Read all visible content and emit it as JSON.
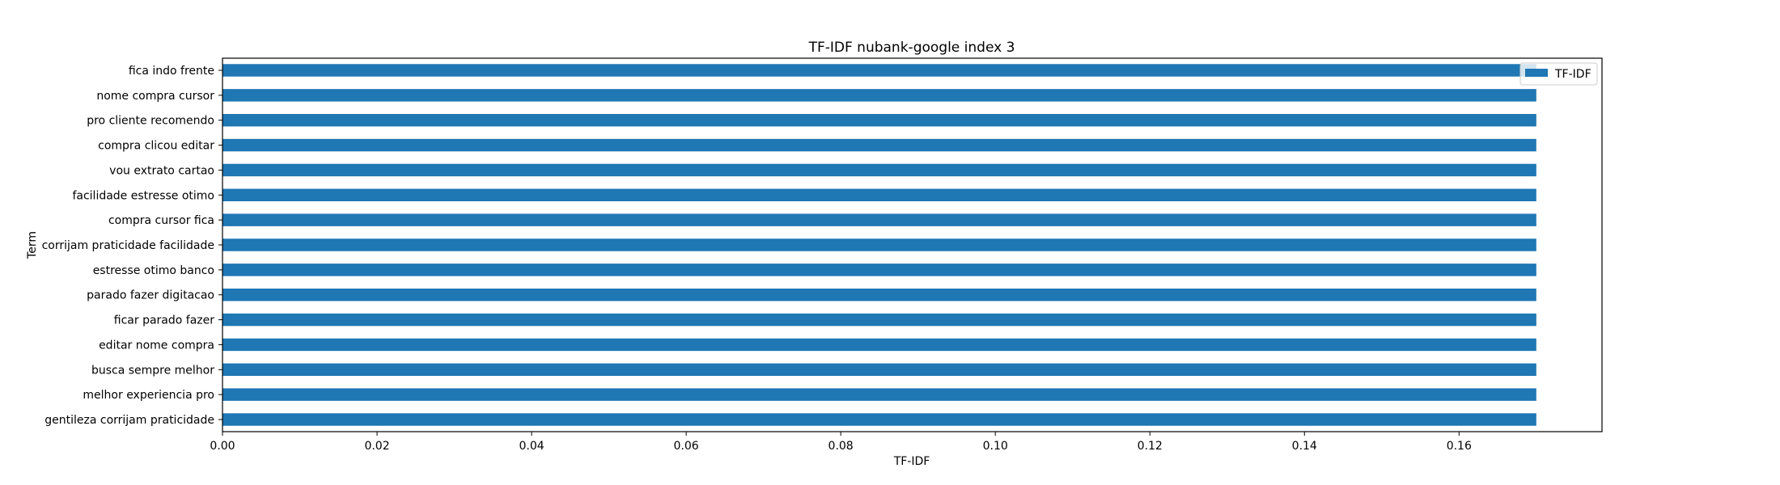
{
  "chart_data": {
    "type": "bar",
    "orientation": "horizontal",
    "title": "TF-IDF nubank-google index 3",
    "xlabel": "TF-IDF",
    "ylabel": "Term",
    "xlim": [
      0.0,
      0.1785
    ],
    "xticks": [
      0.0,
      0.02,
      0.04,
      0.06,
      0.08,
      0.1,
      0.12,
      0.14,
      0.16
    ],
    "xtick_labels": [
      "0.00",
      "0.02",
      "0.04",
      "0.06",
      "0.08",
      "0.10",
      "0.12",
      "0.14",
      "0.16"
    ],
    "categories": [
      "fica indo frente",
      "nome compra cursor",
      "pro cliente recomendo",
      "compra clicou editar",
      "vou extrato cartao",
      "facilidade estresse otimo",
      "compra cursor fica",
      "corrijam praticidade facilidade",
      "estresse otimo banco",
      "parado fazer digitacao",
      "ficar parado fazer",
      "editar nome compra",
      "busca sempre melhor",
      "melhor experiencia pro",
      "gentileza corrijam praticidade"
    ],
    "series": [
      {
        "name": "TF-IDF",
        "color": "#1f77b4",
        "values": [
          0.17,
          0.17,
          0.17,
          0.17,
          0.17,
          0.17,
          0.17,
          0.17,
          0.17,
          0.17,
          0.17,
          0.17,
          0.17,
          0.17,
          0.17
        ]
      }
    ],
    "legend": {
      "position": "top-right",
      "entries": [
        "TF-IDF"
      ]
    },
    "grid": false
  }
}
